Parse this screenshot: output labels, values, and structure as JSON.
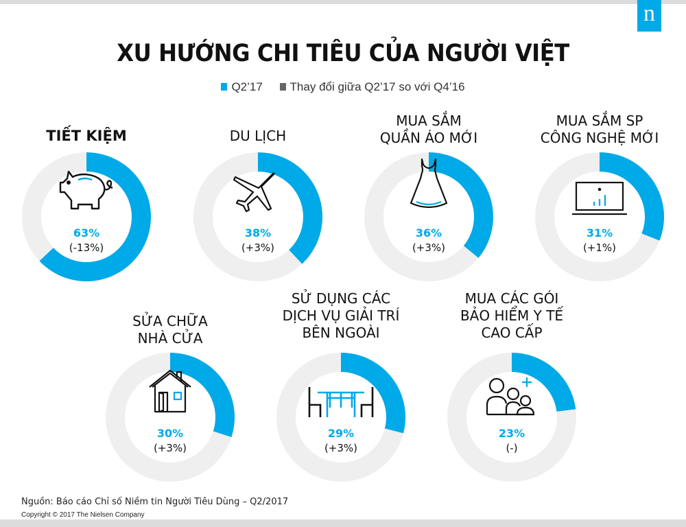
{
  "header": {
    "title": "XU HƯỚNG CHI TIÊU CỦA NGƯỜI VIỆT",
    "logo": "n"
  },
  "legend": [
    {
      "label": "Q2’17",
      "color": "#00a9e7"
    },
    {
      "label": "Thay đổi giữa Q2’17 so với Q4’16",
      "color": "#666666"
    }
  ],
  "colors": {
    "accent": "#00a9e7",
    "track": "#efefef",
    "text": "#111111"
  },
  "cards": [
    {
      "label": "TIẾT KIỆM",
      "value": "63%",
      "change": "(-13%)",
      "icon": "piggy-bank-icon"
    },
    {
      "label": "DU LỊCH",
      "value": "38%",
      "change": "(+3%)",
      "icon": "airplane-icon"
    },
    {
      "label": "MUA SẮM\nQUẦN ÁO MỚI",
      "value": "36%",
      "change": "(+3%)",
      "icon": "dress-icon"
    },
    {
      "label": "MUA SẮM SP\nCÔNG NGHỆ MỚI",
      "value": "31%",
      "change": "(+1%)",
      "icon": "laptop-chart-icon"
    },
    {
      "label": "SỬA CHỮA\nNHÀ CỬA",
      "value": "30%",
      "change": "(+3%)",
      "icon": "house-icon"
    },
    {
      "label": "SỬ DỤNG CÁC\nDỊCH VỤ GIẢI TRÍ\nBÊN NGOÀI",
      "value": "29%",
      "change": "(+3%)",
      "icon": "dining-table-icon"
    },
    {
      "label": "MUA CÁC GÓI\nBẢO HIỂM Y TẾ\nCAO CẤP",
      "value": "23%",
      "change": "(-)",
      "icon": "family-health-icon"
    }
  ],
  "footer": {
    "source": "Nguồn: Báo cáo Chỉ số Niềm tin Người Tiêu Dùng – Q2/2017",
    "copyright": "Copyright © 2017 The Nielsen Company"
  },
  "chart_data": {
    "type": "pie",
    "subtype": "donut-small-multiples",
    "title": "XU HƯỚNG CHI TIÊU CỦA NGƯỜI VIỆT",
    "legend": [
      "Q2’17",
      "Thay đổi giữa Q2’17 so với Q4’16"
    ],
    "categories": [
      "TIẾT KIỆM",
      "DU LỊCH",
      "MUA SẮM QUẦN ÁO MỚI",
      "MUA SẮM SP CÔNG NGHỆ MỚI",
      "SỬA CHỮA NHÀ CỬA",
      "SỬ DỤNG CÁC DỊCH VỤ GIẢI TRÍ BÊN NGOÀI",
      "MUA CÁC GÓI BẢO HIỂM Y TẾ CAO CẤP"
    ],
    "series": [
      {
        "name": "Q2’17",
        "values": [
          63,
          38,
          36,
          31,
          30,
          29,
          23
        ],
        "unit": "%"
      },
      {
        "name": "Thay đổi giữa Q2’17 so với Q4’16",
        "values": [
          -13,
          3,
          3,
          1,
          3,
          3,
          null
        ],
        "unit": "%"
      }
    ],
    "source": "Nguồn: Báo cáo Chỉ số Niềm tin Người Tiêu Dùng – Q2/2017"
  }
}
